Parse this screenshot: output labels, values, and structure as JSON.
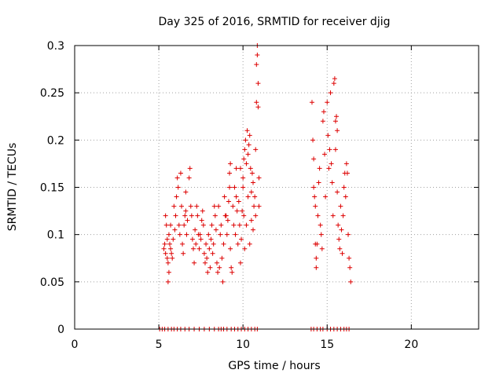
{
  "chart_data": {
    "type": "scatter",
    "title": "Day 325 of 2016, SRMTID for receiver djig",
    "xlabel": "GPS time / hours",
    "ylabel": "SRMTID / TECUs",
    "xlim": [
      0,
      24
    ],
    "ylim": [
      0,
      0.3
    ],
    "x_ticks": [
      0,
      5,
      10,
      15,
      20
    ],
    "x_tick_labels": [
      "0",
      "5",
      "10",
      "15",
      "20"
    ],
    "y_ticks": [
      0,
      0.05,
      0.1,
      0.15,
      0.2,
      0.25,
      0.3
    ],
    "y_tick_labels": [
      "0",
      "0.05",
      "0.1",
      "0.15",
      "0.2",
      "0.25",
      "0.3"
    ],
    "grid": true,
    "marker": "+",
    "series": [
      {
        "name": "SRMTID",
        "color": "#dd0000",
        "points": [
          [
            5.05,
            0.0
          ],
          [
            5.2,
            0.0
          ],
          [
            5.35,
            0.0
          ],
          [
            5.55,
            0.0
          ],
          [
            5.75,
            0.0
          ],
          [
            5.9,
            0.0
          ],
          [
            6.1,
            0.0
          ],
          [
            6.3,
            0.0
          ],
          [
            6.55,
            0.0
          ],
          [
            6.8,
            0.0
          ],
          [
            7.1,
            0.0
          ],
          [
            7.4,
            0.0
          ],
          [
            7.7,
            0.0
          ],
          [
            8.0,
            0.0
          ],
          [
            8.3,
            0.0
          ],
          [
            8.55,
            0.0
          ],
          [
            8.7,
            0.0
          ],
          [
            8.85,
            0.0
          ],
          [
            9.05,
            0.0
          ],
          [
            9.3,
            0.0
          ],
          [
            9.5,
            0.0
          ],
          [
            9.7,
            0.0
          ],
          [
            9.9,
            0.0
          ],
          [
            10.1,
            0.0
          ],
          [
            10.3,
            0.0
          ],
          [
            10.5,
            0.0
          ],
          [
            10.7,
            0.0
          ],
          [
            10.85,
            0.0
          ],
          [
            14.05,
            0.0
          ],
          [
            14.2,
            0.0
          ],
          [
            14.4,
            0.0
          ],
          [
            14.6,
            0.0
          ],
          [
            14.75,
            0.0
          ],
          [
            15.0,
            0.0
          ],
          [
            15.2,
            0.0
          ],
          [
            15.4,
            0.0
          ],
          [
            15.6,
            0.0
          ],
          [
            15.8,
            0.0
          ],
          [
            16.0,
            0.0
          ],
          [
            16.15,
            0.0
          ],
          [
            16.3,
            0.0
          ],
          [
            5.3,
            0.085
          ],
          [
            5.35,
            0.09
          ],
          [
            5.4,
            0.08
          ],
          [
            5.4,
            0.12
          ],
          [
            5.45,
            0.11
          ],
          [
            5.5,
            0.095
          ],
          [
            5.5,
            0.075
          ],
          [
            5.55,
            0.07
          ],
          [
            5.55,
            0.05
          ],
          [
            5.6,
            0.06
          ],
          [
            5.6,
            0.1
          ],
          [
            5.65,
            0.09
          ],
          [
            5.7,
            0.085
          ],
          [
            5.7,
            0.11
          ],
          [
            5.75,
            0.08
          ],
          [
            5.8,
            0.075
          ],
          [
            5.85,
            0.095
          ],
          [
            5.9,
            0.13
          ],
          [
            5.95,
            0.105
          ],
          [
            6.0,
            0.12
          ],
          [
            6.05,
            0.14
          ],
          [
            6.1,
            0.16
          ],
          [
            6.15,
            0.15
          ],
          [
            6.2,
            0.11
          ],
          [
            6.25,
            0.1
          ],
          [
            6.3,
            0.165
          ],
          [
            6.35,
            0.13
          ],
          [
            6.4,
            0.09
          ],
          [
            6.45,
            0.08
          ],
          [
            6.5,
            0.11
          ],
          [
            6.55,
            0.12
          ],
          [
            6.6,
            0.125
          ],
          [
            6.6,
            0.145
          ],
          [
            6.65,
            0.1
          ],
          [
            6.7,
            0.115
          ],
          [
            6.8,
            0.16
          ],
          [
            6.85,
            0.17
          ],
          [
            6.9,
            0.13
          ],
          [
            6.95,
            0.12
          ],
          [
            7.0,
            0.095
          ],
          [
            7.05,
            0.085
          ],
          [
            7.1,
            0.07
          ],
          [
            7.15,
            0.105
          ],
          [
            7.2,
            0.09
          ],
          [
            7.25,
            0.13
          ],
          [
            7.3,
            0.12
          ],
          [
            7.35,
            0.1
          ],
          [
            7.4,
            0.085
          ],
          [
            7.45,
            0.1
          ],
          [
            7.5,
            0.095
          ],
          [
            7.55,
            0.115
          ],
          [
            7.6,
            0.125
          ],
          [
            7.65,
            0.11
          ],
          [
            7.7,
            0.08
          ],
          [
            7.75,
            0.07
          ],
          [
            7.8,
            0.09
          ],
          [
            7.85,
            0.075
          ],
          [
            7.9,
            0.06
          ],
          [
            7.95,
            0.1
          ],
          [
            8.0,
            0.085
          ],
          [
            8.05,
            0.065
          ],
          [
            8.1,
            0.095
          ],
          [
            8.15,
            0.11
          ],
          [
            8.2,
            0.08
          ],
          [
            8.25,
            0.09
          ],
          [
            8.3,
            0.13
          ],
          [
            8.35,
            0.12
          ],
          [
            8.4,
            0.105
          ],
          [
            8.45,
            0.07
          ],
          [
            8.5,
            0.06
          ],
          [
            8.55,
            0.13
          ],
          [
            8.6,
            0.065
          ],
          [
            8.65,
            0.1
          ],
          [
            8.7,
            0.11
          ],
          [
            8.75,
            0.075
          ],
          [
            8.8,
            0.05
          ],
          [
            8.85,
            0.09
          ],
          [
            8.9,
            0.14
          ],
          [
            8.95,
            0.12
          ],
          [
            9.0,
            0.12
          ],
          [
            9.05,
            0.1
          ],
          [
            9.1,
            0.115
          ],
          [
            9.15,
            0.135
          ],
          [
            9.2,
            0.15
          ],
          [
            9.25,
            0.085
          ],
          [
            9.3,
            0.065
          ],
          [
            9.35,
            0.06
          ],
          [
            9.4,
            0.13
          ],
          [
            9.45,
            0.11
          ],
          [
            9.5,
            0.15
          ],
          [
            9.55,
            0.1
          ],
          [
            9.6,
            0.14
          ],
          [
            9.65,
            0.125
          ],
          [
            9.7,
            0.09
          ],
          [
            9.75,
            0.135
          ],
          [
            9.8,
            0.11
          ],
          [
            9.85,
            0.07
          ],
          [
            9.9,
            0.095
          ],
          [
            9.95,
            0.125
          ],
          [
            9.2,
            0.165
          ],
          [
            9.25,
            0.175
          ],
          [
            9.6,
            0.17
          ],
          [
            9.85,
            0.17
          ],
          [
            10.0,
            0.15
          ],
          [
            10.0,
            0.16
          ],
          [
            10.05,
            0.18
          ],
          [
            10.1,
            0.19
          ],
          [
            10.15,
            0.2
          ],
          [
            10.2,
            0.175
          ],
          [
            10.25,
            0.21
          ],
          [
            10.3,
            0.185
          ],
          [
            10.35,
            0.195
          ],
          [
            10.4,
            0.205
          ],
          [
            10.45,
            0.17
          ],
          [
            10.5,
            0.145
          ],
          [
            10.55,
            0.165
          ],
          [
            10.6,
            0.155
          ],
          [
            10.65,
            0.13
          ],
          [
            10.7,
            0.14
          ],
          [
            10.05,
            0.12
          ],
          [
            10.1,
            0.085
          ],
          [
            10.2,
            0.11
          ],
          [
            10.3,
            0.14
          ],
          [
            10.4,
            0.09
          ],
          [
            10.5,
            0.115
          ],
          [
            10.6,
            0.105
          ],
          [
            10.75,
            0.19
          ],
          [
            10.8,
            0.24
          ],
          [
            10.8,
            0.28
          ],
          [
            10.85,
            0.29
          ],
          [
            10.85,
            0.3
          ],
          [
            10.9,
            0.26
          ],
          [
            10.9,
            0.235
          ],
          [
            10.95,
            0.16
          ],
          [
            10.95,
            0.13
          ],
          [
            10.75,
            0.12
          ],
          [
            14.1,
            0.24
          ],
          [
            14.15,
            0.2
          ],
          [
            14.2,
            0.18
          ],
          [
            14.2,
            0.15
          ],
          [
            14.25,
            0.14
          ],
          [
            14.3,
            0.13
          ],
          [
            14.3,
            0.09
          ],
          [
            14.35,
            0.075
          ],
          [
            14.35,
            0.065
          ],
          [
            14.4,
            0.09
          ],
          [
            14.45,
            0.12
          ],
          [
            14.5,
            0.155
          ],
          [
            14.55,
            0.17
          ],
          [
            14.6,
            0.11
          ],
          [
            14.65,
            0.1
          ],
          [
            14.7,
            0.085
          ],
          [
            14.75,
            0.22
          ],
          [
            14.8,
            0.23
          ],
          [
            14.85,
            0.185
          ],
          [
            14.9,
            0.14
          ],
          [
            15.0,
            0.24
          ],
          [
            15.05,
            0.205
          ],
          [
            15.1,
            0.17
          ],
          [
            15.15,
            0.19
          ],
          [
            15.2,
            0.25
          ],
          [
            15.25,
            0.175
          ],
          [
            15.3,
            0.155
          ],
          [
            15.35,
            0.12
          ],
          [
            15.4,
            0.26
          ],
          [
            15.45,
            0.265
          ],
          [
            15.5,
            0.22
          ],
          [
            15.5,
            0.19
          ],
          [
            15.55,
            0.225
          ],
          [
            15.6,
            0.21
          ],
          [
            15.6,
            0.145
          ],
          [
            15.65,
            0.11
          ],
          [
            15.7,
            0.095
          ],
          [
            15.75,
            0.085
          ],
          [
            15.8,
            0.13
          ],
          [
            15.85,
            0.105
          ],
          [
            15.9,
            0.08
          ],
          [
            15.95,
            0.12
          ],
          [
            16.0,
            0.15
          ],
          [
            16.05,
            0.165
          ],
          [
            16.1,
            0.14
          ],
          [
            16.15,
            0.175
          ],
          [
            16.2,
            0.165
          ],
          [
            16.25,
            0.1
          ],
          [
            16.3,
            0.075
          ],
          [
            16.35,
            0.065
          ],
          [
            16.4,
            0.05
          ]
        ]
      }
    ]
  }
}
